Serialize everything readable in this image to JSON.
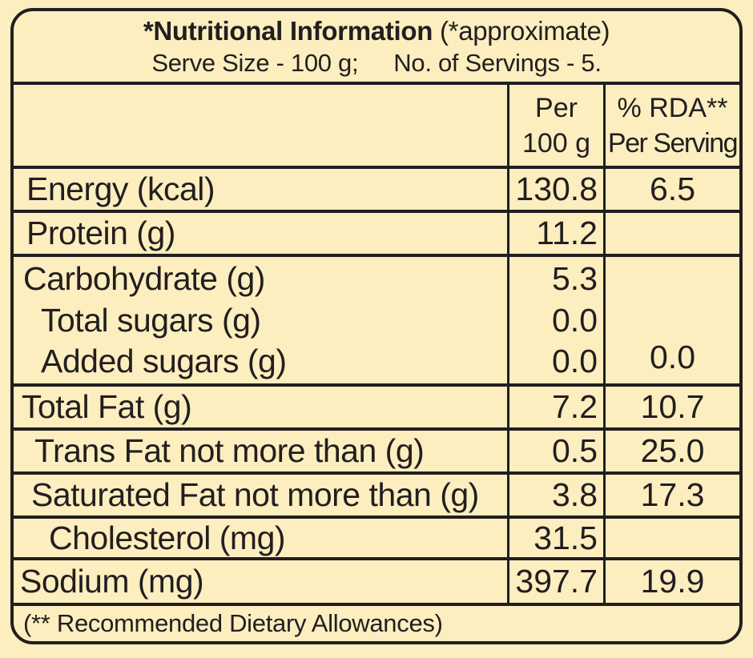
{
  "colors": {
    "background": "#fceebf",
    "ink": "#221e1f"
  },
  "title": {
    "line1_bold": "*Nutritional Information",
    "line1_rest": " (*approximate)",
    "serve_size": "Serve Size - 100 g;",
    "servings": "No. of Servings - 5."
  },
  "header": {
    "per100": {
      "line1": "Per",
      "line2": "100 g"
    },
    "rda": {
      "line1": "% RDA**",
      "line2": "Per Serving"
    }
  },
  "rows": [
    {
      "label": "Energy (kcal)",
      "per_100g": "130.8",
      "rda_per_serving": "6.5"
    },
    {
      "label": "Protein (g)",
      "per_100g": "11.2",
      "rda_per_serving": ""
    },
    {
      "group": "carbohydrate",
      "lines": [
        {
          "label": "Carbohydrate (g)",
          "per_100g": "5.3"
        },
        {
          "label": "Total sugars (g)",
          "per_100g": "0.0"
        },
        {
          "label": "Added sugars (g)",
          "per_100g": "0.0"
        }
      ],
      "rda_per_serving": "0.0"
    },
    {
      "label": "Total Fat (g)",
      "per_100g": "7.2",
      "rda_per_serving": "10.7"
    },
    {
      "label": "Trans Fat not more than (g)",
      "per_100g": "0.5",
      "rda_per_serving": "25.0"
    },
    {
      "label": "Saturated Fat not more than (g)",
      "per_100g": "3.8",
      "rda_per_serving": "17.3"
    },
    {
      "label": "Cholesterol (mg)",
      "per_100g": "31.5",
      "rda_per_serving": ""
    },
    {
      "label": "Sodium (mg)",
      "per_100g": "397.7",
      "rda_per_serving": "19.9"
    }
  ],
  "footer": {
    "note": "(** Recommended Dietary Allowances)"
  }
}
